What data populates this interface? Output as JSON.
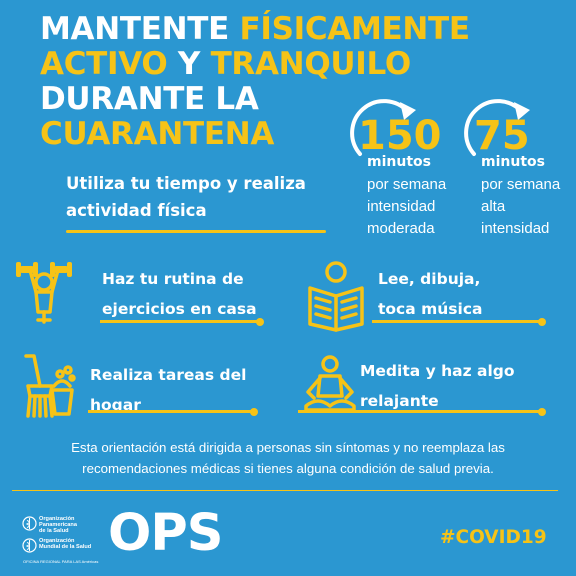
{
  "title": {
    "line1": {
      "white": "MANTENTE ",
      "yellow": "FÍSICAMENTE"
    },
    "line2": {
      "yellow1": "ACTIVO",
      "white": " Y ",
      "yellow2": "TRANQUILO"
    },
    "line3": {
      "white": "DURANTE LA"
    },
    "line4": {
      "yellow": "CUARANTENA"
    }
  },
  "stats": [
    {
      "value": "150",
      "unit": "minutos",
      "desc": [
        "por semana",
        "intensidad",
        "moderada"
      ]
    },
    {
      "value": "75",
      "unit": "minutos",
      "desc": [
        "por semana",
        "alta",
        "intensidad"
      ]
    }
  ],
  "intro": {
    "line1": "Utiliza tu tiempo y realiza",
    "line2": "actividad física"
  },
  "activities": [
    {
      "icon": "person-exercising-icon",
      "lines": [
        "Haz tu rutina de",
        "ejercicios en casa"
      ]
    },
    {
      "icon": "person-reading-icon",
      "lines": [
        "Lee, dibuja,",
        "toca música"
      ]
    },
    {
      "icon": "cleaning-broom-bucket-icon",
      "lines": [
        "Realiza tareas del",
        "hogar"
      ]
    },
    {
      "icon": "person-meditating-icon",
      "lines": [
        "Medita y haz algo",
        "relajante"
      ]
    }
  ],
  "disclaimer": {
    "line1": "Esta orientación está dirigida a personas sin síntomas y no reemplaza las",
    "line2": "recomendaciones médicas si tienes alguna condición de salud previa."
  },
  "footer": {
    "org1": [
      "Organización",
      "Panamericana",
      "de la Salud"
    ],
    "org2": [
      "Organización",
      "Mundial de la Salud"
    ],
    "org2_sub": "OFICINA REGIONAL PARA LAS Américas",
    "brand": "OPS",
    "hashtag": "#COVID19"
  },
  "colors": {
    "background": "#2b97d1",
    "accent": "#f6c317",
    "text": "#ffffff"
  }
}
